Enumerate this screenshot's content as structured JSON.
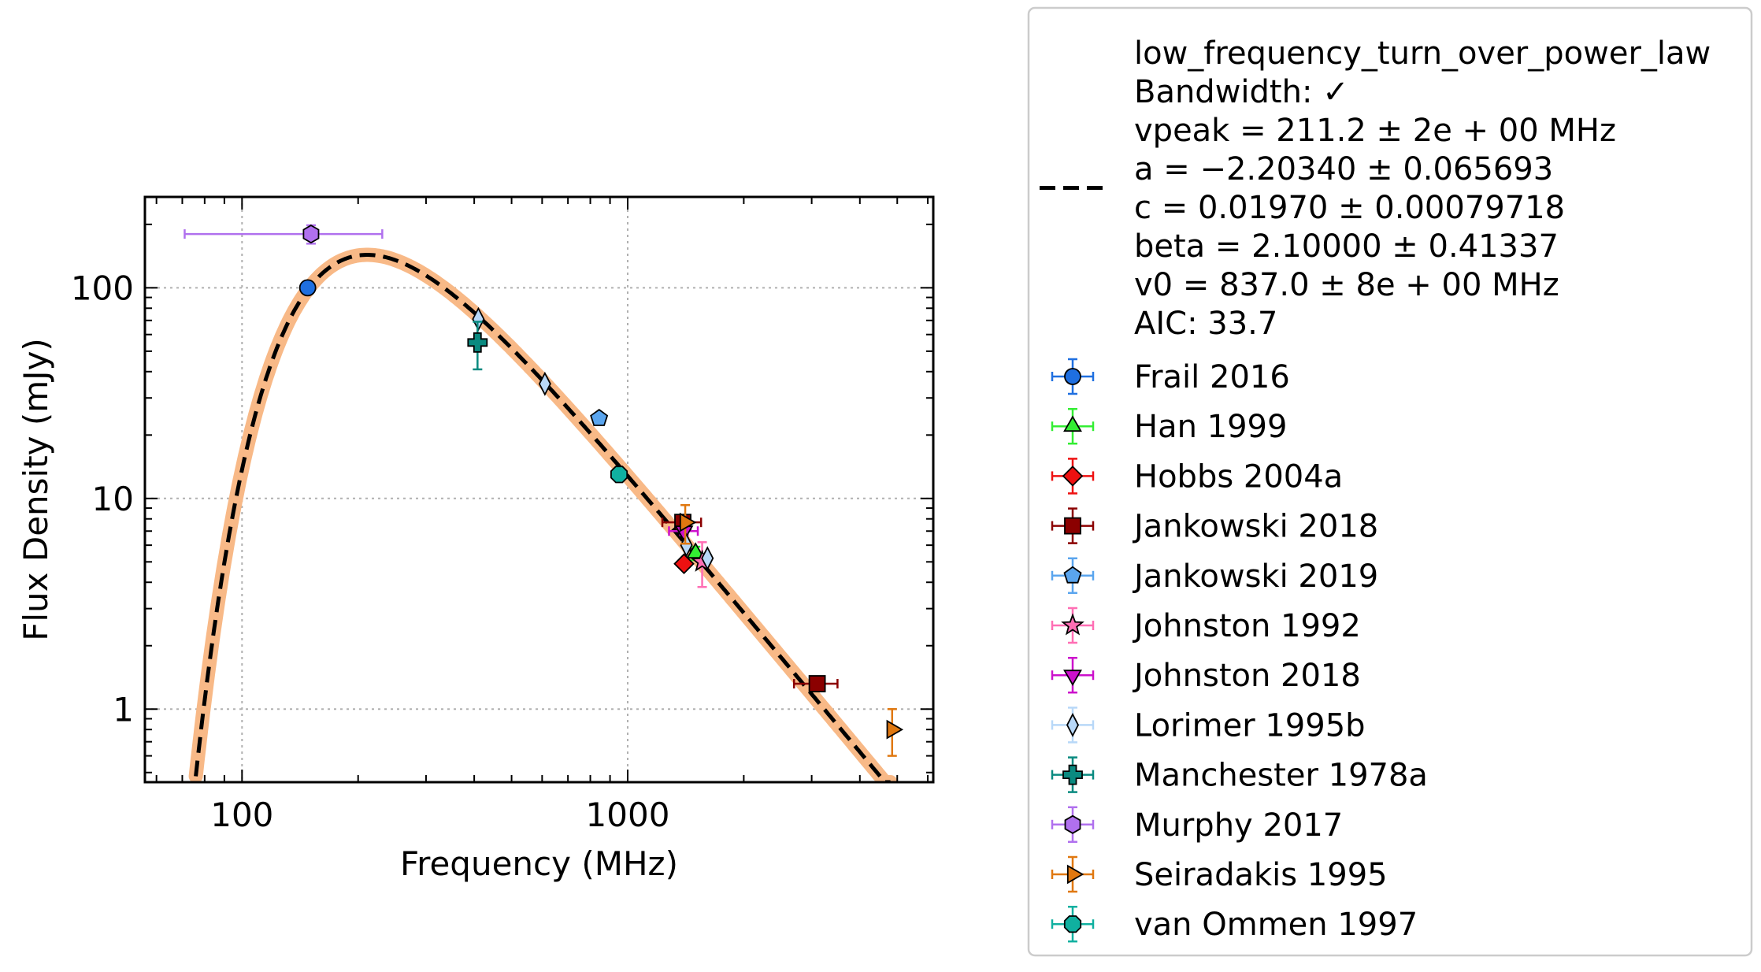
{
  "chart_data": {
    "type": "scatter",
    "title": "",
    "xlabel": "Frequency (MHz)",
    "ylabel": "Flux Density (mJy)",
    "xscale": "log",
    "yscale": "log",
    "xlim": [
      56,
      6200
    ],
    "ylim": [
      0.45,
      270
    ],
    "xticks": [
      {
        "value": 100,
        "label": "100"
      },
      {
        "value": 1000,
        "label": "1000"
      }
    ],
    "yticks": [
      {
        "value": 1,
        "label": "1"
      },
      {
        "value": 10,
        "label": "10"
      },
      {
        "value": 100,
        "label": "100"
      }
    ],
    "grid": true,
    "legend_position": "outside-right",
    "fit": {
      "model": "low_frequency_turn_over_power_law",
      "legend_lines": [
        "low_frequency_turn_over_power_law",
        "Bandwidth: ✓",
        "vpeak = 211.2 ± 2e + 00 MHz",
        "a = −2.20340 ± 0.065693",
        "c = 0.01970 ± 0.00079718",
        "beta = 2.10000 ± 0.41337",
        "v0 = 837.0 ± 8e + 00 MHz",
        "AIC: 33.7"
      ],
      "params": {
        "a": -2.2034,
        "c": 0.0197,
        "beta": 2.1,
        "v0": 837.0,
        "vpeak": 211.2
      },
      "line_color": "#000000",
      "band_color": "#f8b987",
      "x_range": [
        72,
        4800
      ]
    },
    "series": [
      {
        "name": "Frail 2016",
        "marker": "circle",
        "color": "#1f6fe0",
        "points": [
          {
            "x": 148,
            "y": 100,
            "y_err": [
              4,
              4
            ],
            "x_err": [
              0,
              0
            ]
          }
        ]
      },
      {
        "name": "Han 1999",
        "marker": "triangle-up",
        "color": "#33ee33",
        "points": [
          {
            "x": 1500,
            "y": 5.5,
            "y_err": [
              0.4,
              0.4
            ],
            "x_err": [
              0,
              0
            ]
          }
        ]
      },
      {
        "name": "Hobbs 2004a",
        "marker": "diamond",
        "color": "#ee1111",
        "points": [
          {
            "x": 1400,
            "y": 4.9,
            "y_err": [
              0.2,
              0.2
            ],
            "x_err": [
              0,
              0
            ]
          }
        ]
      },
      {
        "name": "Jankowski 2018",
        "marker": "square",
        "color": "#8b0000",
        "points": [
          {
            "x": 1390,
            "y": 7.7,
            "y_err": [
              0.5,
              0.5
            ],
            "x_err": [
              160,
              160
            ]
          },
          {
            "x": 3100,
            "y": 1.32,
            "y_err": [
              0.05,
              0.05
            ],
            "x_err": [
              400,
              400
            ]
          }
        ]
      },
      {
        "name": "Jankowski 2019",
        "marker": "pentagon",
        "color": "#5aa5ee",
        "points": [
          {
            "x": 843,
            "y": 24,
            "y_err": [
              1,
              1
            ],
            "x_err": [
              0,
              0
            ]
          }
        ]
      },
      {
        "name": "Johnston 1992",
        "marker": "star",
        "color": "#ff6eb4",
        "points": [
          {
            "x": 1560,
            "y": 5.0,
            "y_err": [
              1.2,
              1.2
            ],
            "x_err": [
              0,
              0
            ]
          }
        ]
      },
      {
        "name": "Johnston 2018",
        "marker": "triangle-down",
        "color": "#cc11cc",
        "points": [
          {
            "x": 1400,
            "y": 7.0,
            "y_err": [
              0.3,
              0.3
            ],
            "x_err": [
              120,
              120
            ]
          }
        ]
      },
      {
        "name": "Lorimer 1995b",
        "marker": "thin-diamond",
        "color": "#b8d8f8",
        "points": [
          {
            "x": 410,
            "y": 71,
            "y_err": [
              2,
              2
            ],
            "x_err": [
              0,
              0
            ]
          },
          {
            "x": 610,
            "y": 35,
            "y_err": [
              1,
              1
            ],
            "x_err": [
              0,
              0
            ]
          },
          {
            "x": 1420,
            "y": 6.0,
            "y_err": [
              0.2,
              0.2
            ],
            "x_err": [
              0,
              0
            ]
          },
          {
            "x": 1610,
            "y": 5.2,
            "y_err": [
              0.2,
              0.2
            ],
            "x_err": [
              0,
              0
            ]
          }
        ]
      },
      {
        "name": "Manchester 1978a",
        "marker": "plus",
        "color": "#0a8a80",
        "points": [
          {
            "x": 408,
            "y": 55,
            "y_err": [
              14,
              14
            ],
            "x_err": [
              0,
              0
            ]
          }
        ]
      },
      {
        "name": "Murphy 2017",
        "marker": "hexagon",
        "color": "#b070ee",
        "points": [
          {
            "x": 151,
            "y": 180,
            "y_err": [
              18,
              18
            ],
            "x_err": [
              80,
              80
            ]
          }
        ]
      },
      {
        "name": "Seiradakis 1995",
        "marker": "triangle-right",
        "color": "#e07810",
        "points": [
          {
            "x": 1410,
            "y": 7.7,
            "y_err": [
              1.6,
              1.6
            ],
            "x_err": [
              0,
              0
            ]
          },
          {
            "x": 4850,
            "y": 0.8,
            "y_err": [
              0.2,
              0.2
            ],
            "x_err": [
              0,
              0
            ]
          }
        ]
      },
      {
        "name": "van Ommen 1997",
        "marker": "octagon",
        "color": "#10b0a0",
        "points": [
          {
            "x": 950,
            "y": 13,
            "y_err": [
              0.6,
              0.6
            ],
            "x_err": [
              0,
              0
            ]
          }
        ]
      }
    ]
  }
}
